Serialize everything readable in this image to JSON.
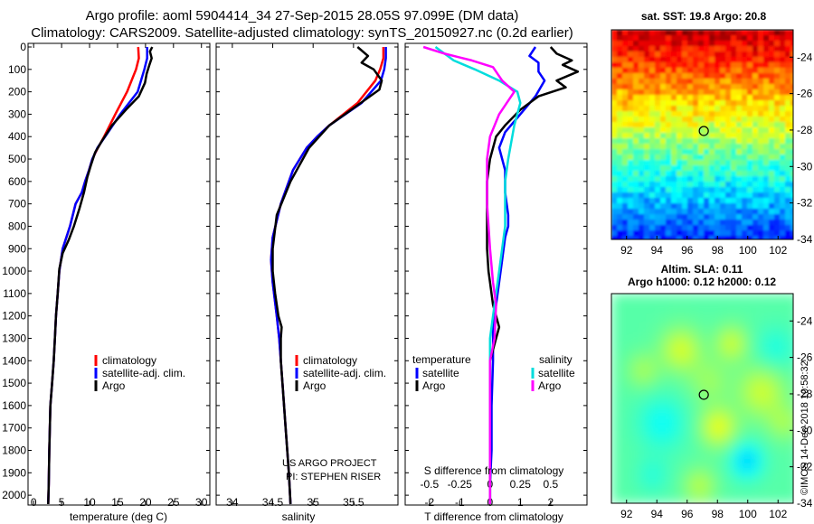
{
  "figure": {
    "title_line1": "Argo profile: aoml 5904414_34 27-Sep-2015 28.05S 97.099E (DM data)",
    "title_line2": "Climatology: CARS2009. Satellite-adjusted climatology: synTS_20150927.nc (0.2d earlier)",
    "credit1": "US ARGO PROJECT",
    "credit2": "PI: STEPHEN RISER",
    "footer": "©IMOS 14-Dec-2018 10:58:32"
  },
  "colors": {
    "climatology": "#ff0000",
    "satellite": "#0000ff",
    "argo": "#000000",
    "sat_salinity": "#00dddd",
    "argo_salinity_diff": "#ff00ff"
  },
  "chart_data": [
    {
      "type": "line",
      "id": "temperature",
      "xlabel": "temperature (deg C)",
      "xlim": [
        -1,
        31.5
      ],
      "xticks": [
        0,
        5,
        10,
        15,
        20,
        25,
        30
      ],
      "ylim": [
        2060,
        0
      ],
      "yticks": [
        0,
        100,
        200,
        300,
        400,
        500,
        600,
        700,
        800,
        900,
        1000,
        1100,
        1200,
        1300,
        1400,
        1500,
        1600,
        1700,
        1800,
        1900,
        2000
      ],
      "legend_pos": "lower-right",
      "series": [
        {
          "name": "climatology",
          "color": "#ff0000",
          "x": [
            18.7,
            18.8,
            18.3,
            16.7,
            14.6,
            12.6,
            11.5,
            10.5,
            9.9,
            9.2,
            8.6,
            7.5,
            6.5,
            5.2,
            4.6,
            4.3,
            4.0,
            3.8,
            3.6,
            3.3,
            3.0,
            2.8,
            2.7,
            2.6
          ],
          "y": [
            0,
            50,
            100,
            200,
            300,
            400,
            450,
            500,
            550,
            600,
            650,
            700,
            800,
            900,
            1000,
            1100,
            1200,
            1300,
            1400,
            1500,
            1600,
            1800,
            1950,
            2040
          ]
        },
        {
          "name": "satellite-adj. clim.",
          "color": "#0000ff",
          "x": [
            20.3,
            20.3,
            19.8,
            18.6,
            15.5,
            12.8,
            11.4,
            10.5,
            9.9,
            9.2,
            8.6,
            7.5,
            6.5,
            5.2,
            4.6,
            4.3,
            4.0,
            3.8,
            3.6,
            3.3,
            3.0,
            2.8,
            2.7,
            2.6
          ],
          "y": [
            0,
            50,
            100,
            200,
            300,
            400,
            450,
            500,
            550,
            600,
            650,
            700,
            800,
            900,
            1000,
            1100,
            1200,
            1300,
            1400,
            1500,
            1600,
            1800,
            1950,
            2040
          ]
        },
        {
          "name": "Argo",
          "color": "#000000",
          "x": [
            21.2,
            20.8,
            21.1,
            20.7,
            20.2,
            19.9,
            18.8,
            16.5,
            14.0,
            12.2,
            11.0,
            10.2,
            9.6,
            9.0,
            8.2,
            7.2,
            6.3,
            5.2,
            4.6,
            4.3,
            4.0,
            3.8,
            3.6,
            3.3,
            3.0,
            2.8,
            2.7,
            2.6
          ],
          "y": [
            0,
            20,
            50,
            80,
            120,
            160,
            220,
            280,
            350,
            420,
            470,
            530,
            580,
            650,
            720,
            800,
            860,
            920,
            990,
            1100,
            1200,
            1300,
            1400,
            1500,
            1600,
            1800,
            1950,
            2040
          ]
        }
      ]
    },
    {
      "type": "line",
      "id": "salinity",
      "xlabel": "salinity",
      "xlim": [
        33.8,
        36.05
      ],
      "xticks": [
        34,
        34.5,
        35,
        35.5
      ],
      "ylim": [
        2060,
        0
      ],
      "legend_pos": "lower-right",
      "series": [
        {
          "name": "climatology",
          "color": "#ff0000",
          "x": [
            35.87,
            35.87,
            35.83,
            35.77,
            35.55,
            35.2,
            35.05,
            34.92,
            34.75,
            34.6,
            34.5,
            34.48,
            34.5,
            34.55,
            34.58,
            34.6,
            34.62,
            34.66,
            34.7,
            34.72
          ],
          "y": [
            0,
            50,
            100,
            150,
            250,
            350,
            400,
            450,
            550,
            700,
            850,
            950,
            1050,
            1200,
            1300,
            1400,
            1500,
            1700,
            1900,
            2040
          ]
        },
        {
          "name": "satellite-adj. clim.",
          "color": "#0000ff",
          "x": [
            35.9,
            35.9,
            35.88,
            35.84,
            35.6,
            35.2,
            35.05,
            34.92,
            34.75,
            34.6,
            34.5,
            34.48,
            34.5,
            34.55,
            34.58,
            34.6,
            34.62,
            34.66,
            34.7,
            34.72
          ],
          "y": [
            0,
            50,
            100,
            150,
            250,
            350,
            400,
            450,
            550,
            700,
            850,
            950,
            1050,
            1200,
            1300,
            1400,
            1500,
            1700,
            1900,
            2040
          ]
        },
        {
          "name": "Argo",
          "color": "#000000",
          "x": [
            35.55,
            35.68,
            35.6,
            35.75,
            35.85,
            35.82,
            35.55,
            35.2,
            34.95,
            34.72,
            34.55,
            34.5,
            34.5,
            34.53,
            34.57,
            34.61,
            34.6,
            34.6,
            34.62,
            34.66,
            34.7,
            34.72
          ],
          "y": [
            0,
            40,
            70,
            100,
            150,
            190,
            260,
            350,
            450,
            600,
            750,
            900,
            1000,
            1100,
            1200,
            1250,
            1300,
            1400,
            1500,
            1700,
            1900,
            2040
          ]
        }
      ]
    },
    {
      "type": "line",
      "id": "differences",
      "xlabel": "T difference from climatology",
      "xlabel2": "S difference from climatology",
      "xlim": [
        -2.8,
        3.2
      ],
      "xticks": [
        -2,
        -1,
        0,
        1,
        2
      ],
      "xticks_top_labels": [
        "-0.5",
        "-0.25",
        "0",
        "0.25",
        "0.5"
      ],
      "ylim": [
        2060,
        0
      ],
      "legend": {
        "temperature_title": "temperature",
        "salinity_title": "salinity",
        "satellite": "satellite",
        "argo": "Argo"
      },
      "series": [
        {
          "name": "temperature satellite",
          "color": "#0000ff",
          "x": [
            1.5,
            1.3,
            1.6,
            1.6,
            1.8,
            1.5,
            1.0,
            0.5,
            0.3,
            0.4,
            0.5,
            0.5,
            0.6,
            0.6,
            0.5,
            0.4,
            0.3,
            0.2,
            0.1,
            0.1,
            0.05,
            0.05,
            0.0,
            0.0
          ],
          "y": [
            0,
            40,
            70,
            110,
            150,
            220,
            300,
            380,
            450,
            500,
            550,
            650,
            750,
            800,
            850,
            950,
            1050,
            1150,
            1250,
            1400,
            1600,
            1800,
            1950,
            2040
          ]
        },
        {
          "name": "temperature Argo",
          "color": "#000000",
          "x": [
            2.0,
            2.2,
            2.7,
            2.4,
            2.9,
            2.2,
            2.5,
            1.6,
            1.0,
            0.5,
            0.2,
            0.0,
            -0.1,
            -0.1,
            -0.1,
            -0.1,
            -0.05,
            0.0,
            0.1,
            0.3,
            0.2,
            0.0,
            0.0,
            0.0
          ],
          "y": [
            0,
            30,
            60,
            80,
            110,
            150,
            180,
            220,
            280,
            350,
            400,
            500,
            600,
            700,
            800,
            900,
            1000,
            1050,
            1150,
            1250,
            1300,
            1400,
            1600,
            2040
          ]
        },
        {
          "name": "salinity satellite",
          "color": "#00dddd",
          "x": [
            -1.8,
            -1.4,
            -1.2,
            -0.5,
            0.3,
            0.9,
            1.0,
            0.8,
            0.6,
            0.5,
            0.5,
            0.4,
            0.3,
            0.2,
            0.1,
            0.0,
            0.0,
            0.0
          ],
          "y": [
            0,
            40,
            60,
            100,
            150,
            200,
            250,
            350,
            500,
            600,
            800,
            900,
            1000,
            1100,
            1200,
            1300,
            1600,
            2040
          ]
        },
        {
          "name": "salinity Argo",
          "color": "#ff00ff",
          "x": [
            -2.2,
            -1.5,
            -0.6,
            0.1,
            0.4,
            0.8,
            0.3,
            0.0,
            -0.1,
            -0.1,
            0.0,
            0.1,
            0.2,
            0.15,
            0.0,
            0.0,
            0.0
          ],
          "y": [
            0,
            30,
            60,
            90,
            150,
            200,
            300,
            400,
            500,
            700,
            900,
            1050,
            1150,
            1300,
            1400,
            1600,
            2040
          ]
        }
      ]
    },
    {
      "type": "heatmap",
      "id": "sst_map",
      "title": "sat. SST: 19.8 Argo: 20.8",
      "xlim": [
        91,
        103
      ],
      "ylim": [
        -34,
        -22.5
      ],
      "xticks": [
        92,
        94,
        96,
        98,
        100,
        102
      ],
      "yticks": [
        -24,
        -26,
        -28,
        -30,
        -32,
        -34
      ],
      "colorscale": "jet",
      "marker": {
        "lon": 97.099,
        "lat": -28.05
      }
    },
    {
      "type": "heatmap",
      "id": "sla_map",
      "title": "Altim. SLA: 0.11",
      "subtitle": "Argo h1000: 0.12 h2000: 0.12",
      "xlim": [
        91,
        103
      ],
      "ylim": [
        -34,
        -22.5
      ],
      "xticks": [
        92,
        94,
        96,
        98,
        100,
        102
      ],
      "yticks": [
        -24,
        -26,
        -28,
        -30,
        -32,
        -34
      ],
      "colorscale": "jet",
      "marker": {
        "lon": 97.099,
        "lat": -28.05
      }
    }
  ]
}
